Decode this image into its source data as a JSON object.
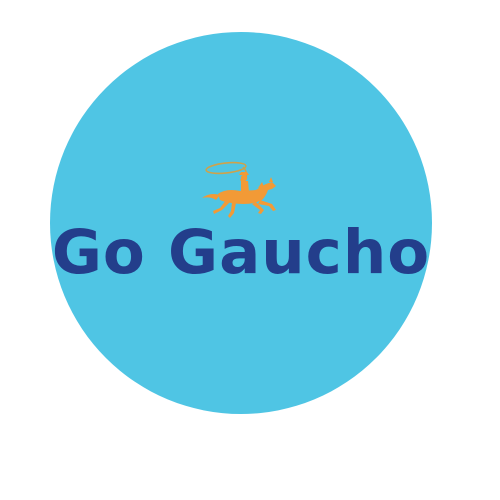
{
  "logo": {
    "brand_name": "Go Gaucho",
    "emblem_icon": "gaucho-rider-lasso-icon"
  },
  "colors": {
    "background": "#ffffff",
    "circle": "#4FC5E4",
    "text": "#233E8B",
    "emblem": "#F29A36",
    "lasso": "#CFA24A"
  }
}
